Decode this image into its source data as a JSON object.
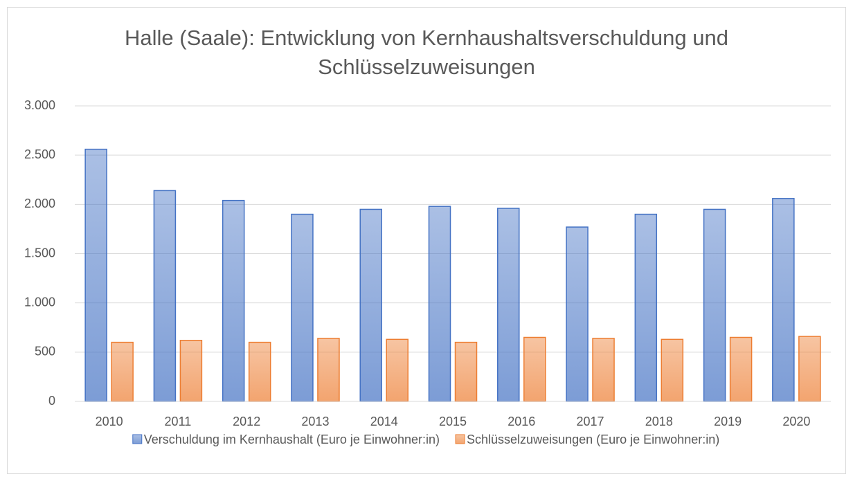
{
  "chart_data": {
    "type": "bar",
    "title": "Halle (Saale): Entwicklung von Kernhaushaltsverschuldung und Schlüsselzuweisungen",
    "categories": [
      "2010",
      "2011",
      "2012",
      "2013",
      "2014",
      "2015",
      "2016",
      "2017",
      "2018",
      "2019",
      "2020"
    ],
    "series": [
      {
        "name": "Verschuldung im Kernhaushalt (Euro je Einwohner:in)",
        "color": "#4472c4",
        "values": [
          2560,
          2140,
          2040,
          1900,
          1950,
          1980,
          1960,
          1770,
          1900,
          1950,
          2060
        ]
      },
      {
        "name": "Schlüsselzuweisungen (Euro je Einwohner:in)",
        "color": "#ed7d31",
        "values": [
          600,
          620,
          600,
          640,
          630,
          600,
          650,
          640,
          630,
          650,
          660
        ]
      }
    ],
    "ylim": [
      0,
      3000
    ],
    "yticks": [
      0,
      500,
      {
        "value": 1000,
        "label": "1.000"
      },
      {
        "value": 1500,
        "label": "1.500"
      },
      {
        "value": 2000,
        "label": "2.000"
      },
      {
        "value": 2500,
        "label": "2.500"
      },
      {
        "value": 3000,
        "label": "3.000"
      }
    ],
    "grid": true,
    "legend": "bottom"
  }
}
